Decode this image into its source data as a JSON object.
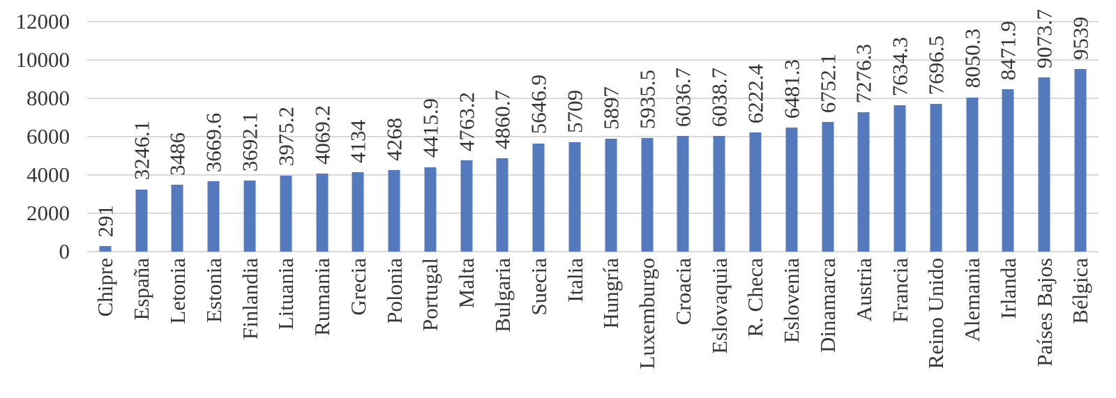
{
  "chart_data": {
    "type": "bar",
    "title": "",
    "xlabel": "",
    "ylabel": "",
    "categories": [
      "Chipre",
      "España",
      "Letonia",
      "Estonia",
      "Finlandia",
      "Lituania",
      "Rumania",
      "Grecia",
      "Polonia",
      "Portugal",
      "Malta",
      "Bulgaria",
      "Suecia",
      "Italia",
      "Hungría",
      "Luxemburgo",
      "Croacia",
      "Eslovaquia",
      "R. Checa",
      "Eslovenia",
      "Dinamarca",
      "Austria",
      "Francia",
      "Reino Unido",
      "Alemania",
      "Irlanda",
      "Países Bajos",
      "Bélgica"
    ],
    "values": [
      291,
      3246.1,
      3486,
      3669.6,
      3692.1,
      3975.2,
      4069.2,
      4134,
      4268,
      4415.9,
      4763.2,
      4860.7,
      5646.9,
      5709,
      5897,
      5935.5,
      6036.7,
      6038.7,
      6222.4,
      6481.3,
      6752.1,
      7276.3,
      7634.3,
      7696.5,
      8050.3,
      8471.9,
      9073.7,
      9539
    ],
    "data_labels_shown": true,
    "label_rotation_degrees": 90,
    "y_ticks": [
      0,
      2000,
      4000,
      6000,
      8000,
      10000,
      12000
    ],
    "ylim": [
      0,
      12000
    ],
    "grid": true,
    "legend_position": "none",
    "colors": {
      "bar": "#5479bd",
      "gridline": "#d9d9d9",
      "text": "#363636",
      "background": "#ffffff"
    }
  }
}
